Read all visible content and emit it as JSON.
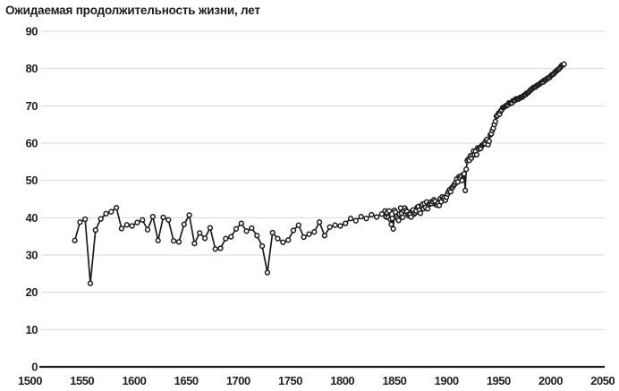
{
  "chart_data": {
    "type": "line",
    "title": "Ожидаемая продолжительность жизни, лет",
    "xlabel": "",
    "ylabel": "",
    "xlim": [
      1500,
      2050
    ],
    "ylim": [
      0,
      90
    ],
    "x_ticks": [
      1500,
      1550,
      1600,
      1650,
      1700,
      1750,
      1800,
      1850,
      1900,
      1950,
      2000,
      2050
    ],
    "y_ticks": [
      0,
      10,
      20,
      30,
      40,
      50,
      60,
      70,
      80,
      90
    ],
    "grid": "horizontal-only",
    "legend_position": "none",
    "marker_style": "open-circle",
    "colors": {
      "line": "#1c1c1c",
      "marker_stroke": "#1c1c1c",
      "marker_fill": "#ffffff",
      "grid": "#d9d9d9",
      "axis": "#1c1c1c",
      "text": "#222222",
      "background": "#ffffff"
    },
    "series": [
      {
        "name": "Ожидаемая продолжительность жизни, лет",
        "points": [
          [
            1543,
            33.9
          ],
          [
            1548,
            38.8
          ],
          [
            1553,
            39.6
          ],
          [
            1558,
            22.4
          ],
          [
            1563,
            36.7
          ],
          [
            1568,
            39.7
          ],
          [
            1573,
            41.1
          ],
          [
            1578,
            41.6
          ],
          [
            1583,
            42.7
          ],
          [
            1588,
            37.1
          ],
          [
            1593,
            38.1
          ],
          [
            1598,
            37.8
          ],
          [
            1603,
            38.7
          ],
          [
            1608,
            39.4
          ],
          [
            1613,
            36.8
          ],
          [
            1618,
            40.3
          ],
          [
            1623,
            33.9
          ],
          [
            1628,
            40.1
          ],
          [
            1633,
            39.4
          ],
          [
            1638,
            33.8
          ],
          [
            1643,
            33.5
          ],
          [
            1648,
            38.2
          ],
          [
            1653,
            40.7
          ],
          [
            1658,
            33.1
          ],
          [
            1663,
            35.9
          ],
          [
            1668,
            34.5
          ],
          [
            1673,
            37.3
          ],
          [
            1678,
            31.6
          ],
          [
            1683,
            31.8
          ],
          [
            1688,
            34.4
          ],
          [
            1693,
            34.9
          ],
          [
            1698,
            37.0
          ],
          [
            1703,
            38.5
          ],
          [
            1708,
            36.4
          ],
          [
            1713,
            37.2
          ],
          [
            1718,
            35.2
          ],
          [
            1723,
            32.4
          ],
          [
            1728,
            25.3
          ],
          [
            1733,
            36.0
          ],
          [
            1738,
            34.4
          ],
          [
            1743,
            33.4
          ],
          [
            1748,
            34.0
          ],
          [
            1753,
            36.6
          ],
          [
            1758,
            38.0
          ],
          [
            1763,
            34.8
          ],
          [
            1768,
            35.6
          ],
          [
            1773,
            36.2
          ],
          [
            1778,
            38.8
          ],
          [
            1783,
            35.2
          ],
          [
            1788,
            37.5
          ],
          [
            1793,
            38.0
          ],
          [
            1798,
            37.8
          ],
          [
            1803,
            38.5
          ],
          [
            1808,
            39.8
          ],
          [
            1813,
            39.2
          ],
          [
            1818,
            40.3
          ],
          [
            1823,
            39.8
          ],
          [
            1828,
            40.8
          ],
          [
            1833,
            40.2
          ],
          [
            1838,
            41.0
          ],
          [
            1841,
            41.8
          ],
          [
            1842,
            40.2
          ],
          [
            1843,
            41.4
          ],
          [
            1844,
            40.1
          ],
          [
            1845,
            41.8
          ],
          [
            1846,
            39.6
          ],
          [
            1847,
            38.2
          ],
          [
            1848,
            39.8
          ],
          [
            1849,
            37.0
          ],
          [
            1850,
            42.0
          ],
          [
            1851,
            41.5
          ],
          [
            1852,
            40.3
          ],
          [
            1853,
            39.8
          ],
          [
            1854,
            39.3
          ],
          [
            1855,
            41.0
          ],
          [
            1856,
            42.6
          ],
          [
            1857,
            41.2
          ],
          [
            1858,
            40.1
          ],
          [
            1859,
            41.8
          ],
          [
            1860,
            42.6
          ],
          [
            1861,
            42.0
          ],
          [
            1862,
            41.6
          ],
          [
            1863,
            40.8
          ],
          [
            1864,
            40.5
          ],
          [
            1865,
            40.9
          ],
          [
            1866,
            40.2
          ],
          [
            1867,
            41.8
          ],
          [
            1868,
            42.1
          ],
          [
            1869,
            41.0
          ],
          [
            1870,
            41.3
          ],
          [
            1871,
            41.8
          ],
          [
            1872,
            42.8
          ],
          [
            1873,
            43.0
          ],
          [
            1874,
            42.0
          ],
          [
            1875,
            41.2
          ],
          [
            1876,
            43.2
          ],
          [
            1877,
            43.6
          ],
          [
            1878,
            42.4
          ],
          [
            1879,
            43.8
          ],
          [
            1880,
            42.8
          ],
          [
            1881,
            44.2
          ],
          [
            1882,
            42.4
          ],
          [
            1883,
            43.5
          ],
          [
            1884,
            43.8
          ],
          [
            1885,
            44.2
          ],
          [
            1886,
            43.8
          ],
          [
            1887,
            44.3
          ],
          [
            1888,
            44.8
          ],
          [
            1889,
            44.4
          ],
          [
            1890,
            43.5
          ],
          [
            1891,
            43.4
          ],
          [
            1892,
            43.9
          ],
          [
            1893,
            43.3
          ],
          [
            1894,
            45.1
          ],
          [
            1895,
            44.3
          ],
          [
            1896,
            45.6
          ],
          [
            1897,
            45.1
          ],
          [
            1898,
            45.4
          ],
          [
            1899,
            44.7
          ],
          [
            1900,
            45.5
          ],
          [
            1901,
            46.4
          ],
          [
            1902,
            47.0
          ],
          [
            1903,
            47.5
          ],
          [
            1904,
            47.0
          ],
          [
            1905,
            48.0
          ],
          [
            1906,
            48.2
          ],
          [
            1907,
            48.7
          ],
          [
            1908,
            49.0
          ],
          [
            1909,
            49.5
          ],
          [
            1910,
            50.4
          ],
          [
            1911,
            49.6
          ],
          [
            1912,
            51.0
          ],
          [
            1913,
            50.7
          ],
          [
            1914,
            51.2
          ],
          [
            1915,
            50.0
          ],
          [
            1916,
            51.5
          ],
          [
            1917,
            51.8
          ],
          [
            1918,
            47.3
          ],
          [
            1919,
            53.0
          ],
          [
            1920,
            55.3
          ],
          [
            1921,
            55.7
          ],
          [
            1922,
            55.4
          ],
          [
            1923,
            56.6
          ],
          [
            1924,
            56.0
          ],
          [
            1925,
            56.8
          ],
          [
            1926,
            57.9
          ],
          [
            1927,
            56.9
          ],
          [
            1928,
            57.8
          ],
          [
            1929,
            56.9
          ],
          [
            1930,
            58.7
          ],
          [
            1931,
            58.4
          ],
          [
            1932,
            58.8
          ],
          [
            1933,
            58.6
          ],
          [
            1934,
            59.4
          ],
          [
            1935,
            59.6
          ],
          [
            1936,
            59.8
          ],
          [
            1937,
            59.9
          ],
          [
            1938,
            60.7
          ],
          [
            1939,
            61.0
          ],
          [
            1940,
            59.6
          ],
          [
            1941,
            60.5
          ],
          [
            1942,
            62.2
          ],
          [
            1943,
            62.5
          ],
          [
            1944,
            63.4
          ],
          [
            1945,
            64.0
          ],
          [
            1946,
            65.0
          ],
          [
            1947,
            65.8
          ],
          [
            1948,
            67.2
          ],
          [
            1949,
            67.4
          ],
          [
            1950,
            68.0
          ],
          [
            1951,
            67.8
          ],
          [
            1952,
            68.6
          ],
          [
            1953,
            68.9
          ],
          [
            1954,
            69.5
          ],
          [
            1955,
            69.6
          ],
          [
            1956,
            69.8
          ],
          [
            1957,
            70.0
          ],
          [
            1958,
            70.1
          ],
          [
            1959,
            70.3
          ],
          [
            1960,
            70.8
          ],
          [
            1961,
            70.8
          ],
          [
            1962,
            70.7
          ],
          [
            1963,
            70.8
          ],
          [
            1964,
            71.4
          ],
          [
            1965,
            71.4
          ],
          [
            1966,
            71.5
          ],
          [
            1967,
            71.9
          ],
          [
            1968,
            71.8
          ],
          [
            1969,
            71.8
          ],
          [
            1970,
            72.0
          ],
          [
            1971,
            72.3
          ],
          [
            1972,
            72.3
          ],
          [
            1973,
            72.4
          ],
          [
            1974,
            72.7
          ],
          [
            1975,
            72.9
          ],
          [
            1976,
            73.0
          ],
          [
            1977,
            73.4
          ],
          [
            1978,
            73.5
          ],
          [
            1979,
            73.7
          ],
          [
            1980,
            74.0
          ],
          [
            1981,
            74.3
          ],
          [
            1982,
            74.5
          ],
          [
            1983,
            74.8
          ],
          [
            1984,
            75.0
          ],
          [
            1985,
            75.0
          ],
          [
            1986,
            75.2
          ],
          [
            1987,
            75.5
          ],
          [
            1988,
            75.6
          ],
          [
            1989,
            75.8
          ],
          [
            1990,
            76.0
          ],
          [
            1991,
            76.2
          ],
          [
            1992,
            76.5
          ],
          [
            1993,
            76.4
          ],
          [
            1994,
            76.9
          ],
          [
            1995,
            76.9
          ],
          [
            1996,
            77.1
          ],
          [
            1997,
            77.4
          ],
          [
            1998,
            77.5
          ],
          [
            1999,
            77.6
          ],
          [
            2000,
            78.0
          ],
          [
            2001,
            78.3
          ],
          [
            2002,
            78.4
          ],
          [
            2003,
            78.6
          ],
          [
            2004,
            79.0
          ],
          [
            2005,
            79.2
          ],
          [
            2006,
            79.5
          ],
          [
            2007,
            79.7
          ],
          [
            2008,
            79.9
          ],
          [
            2009,
            80.2
          ],
          [
            2010,
            80.6
          ],
          [
            2011,
            80.9
          ],
          [
            2012,
            81.0
          ],
          [
            2013,
            81.2
          ]
        ]
      }
    ]
  }
}
